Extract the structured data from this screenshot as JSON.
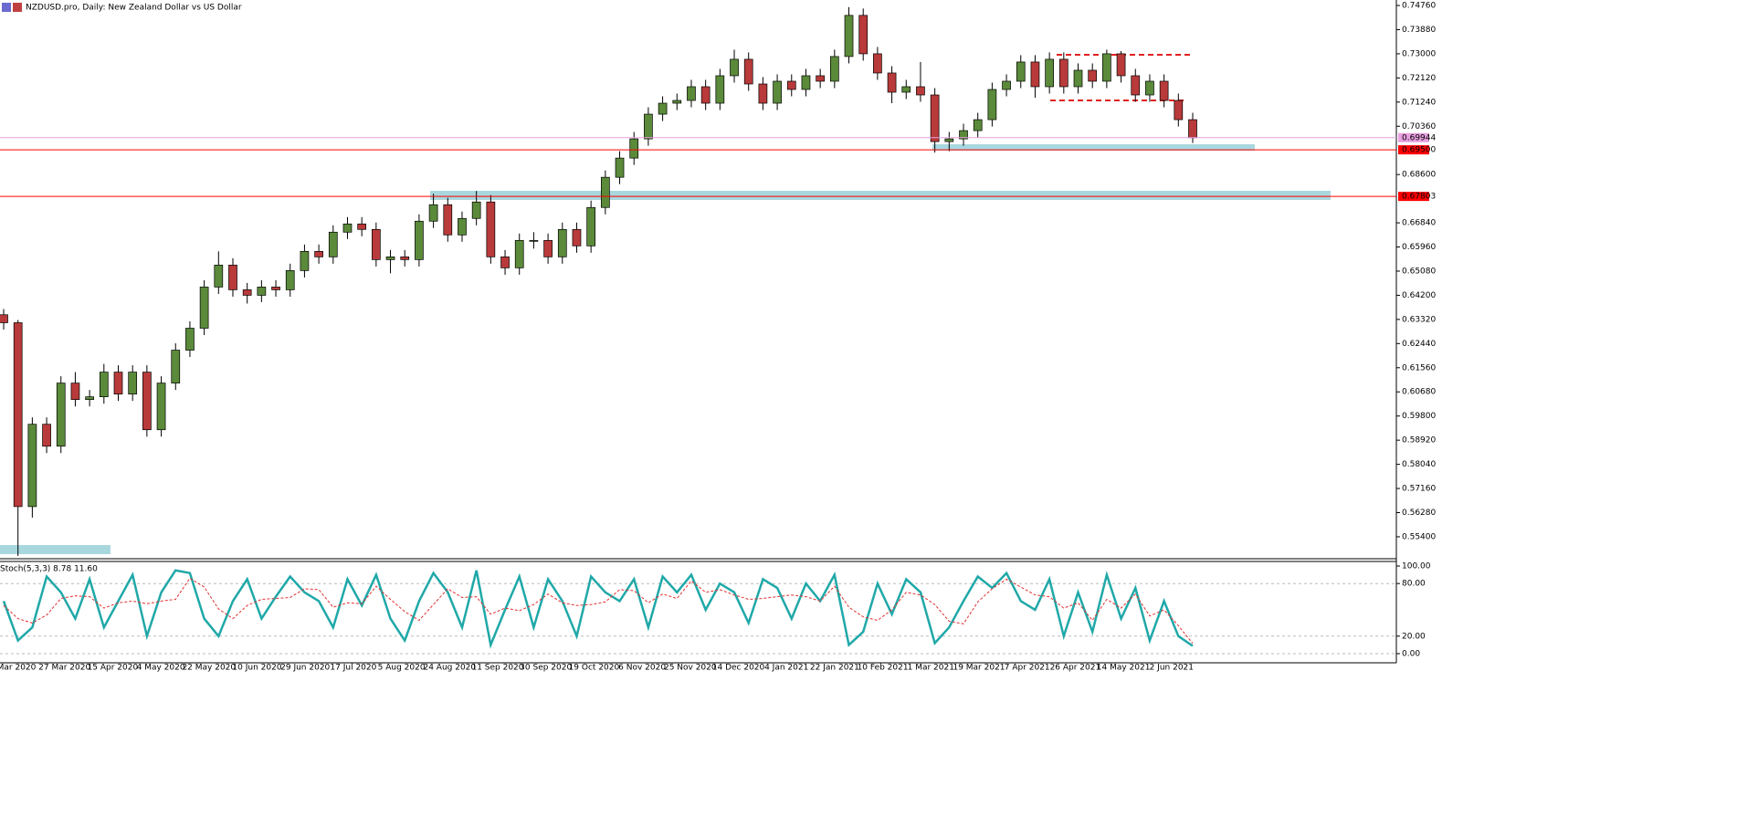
{
  "chart_data": [
    {
      "type": "candlestick",
      "title": "NZDUSD.pro, Daily:  New Zealand Dollar vs US Dollar",
      "bull_color": "#5a8a3a",
      "bear_color": "#b83a3a",
      "candles": [
        [
          0.6349,
          0.637,
          0.6295,
          0.632
        ],
        [
          0.632,
          0.633,
          0.547,
          0.565
        ],
        [
          0.565,
          0.5975,
          0.561,
          0.595
        ],
        [
          0.595,
          0.5975,
          0.5845,
          0.587
        ],
        [
          0.587,
          0.6125,
          0.5845,
          0.61
        ],
        [
          0.61,
          0.614,
          0.6015,
          0.604
        ],
        [
          0.604,
          0.6075,
          0.6015,
          0.605
        ],
        [
          0.605,
          0.617,
          0.6025,
          0.614
        ],
        [
          0.614,
          0.6165,
          0.6035,
          0.606
        ],
        [
          0.606,
          0.6165,
          0.6035,
          0.614
        ],
        [
          0.614,
          0.6165,
          0.5905,
          0.593
        ],
        [
          0.593,
          0.6125,
          0.5905,
          0.61
        ],
        [
          0.61,
          0.6245,
          0.6075,
          0.622
        ],
        [
          0.622,
          0.6325,
          0.6195,
          0.63
        ],
        [
          0.63,
          0.6475,
          0.6275,
          0.645
        ],
        [
          0.645,
          0.658,
          0.6425,
          0.653
        ],
        [
          0.653,
          0.6555,
          0.6415,
          0.644
        ],
        [
          0.644,
          0.6465,
          0.639,
          0.642
        ],
        [
          0.642,
          0.6475,
          0.6395,
          0.645
        ],
        [
          0.645,
          0.6475,
          0.6415,
          0.644
        ],
        [
          0.644,
          0.6535,
          0.6415,
          0.651
        ],
        [
          0.651,
          0.6605,
          0.6485,
          0.658
        ],
        [
          0.658,
          0.6605,
          0.6535,
          0.656
        ],
        [
          0.656,
          0.6675,
          0.6535,
          0.665
        ],
        [
          0.665,
          0.6705,
          0.6625,
          0.668
        ],
        [
          0.668,
          0.6705,
          0.6635,
          0.666
        ],
        [
          0.666,
          0.6685,
          0.6525,
          0.655
        ],
        [
          0.655,
          0.6585,
          0.65,
          0.656
        ],
        [
          0.656,
          0.6585,
          0.6525,
          0.655
        ],
        [
          0.655,
          0.6715,
          0.6525,
          0.669
        ],
        [
          0.669,
          0.679,
          0.6665,
          0.675
        ],
        [
          0.675,
          0.6775,
          0.6615,
          0.664
        ],
        [
          0.664,
          0.6725,
          0.6615,
          0.67
        ],
        [
          0.67,
          0.68,
          0.6675,
          0.676
        ],
        [
          0.676,
          0.6785,
          0.6535,
          0.656
        ],
        [
          0.656,
          0.6585,
          0.6495,
          0.652
        ],
        [
          0.652,
          0.6645,
          0.6495,
          0.662
        ],
        [
          0.662,
          0.665,
          0.659,
          0.662
        ],
        [
          0.662,
          0.6645,
          0.6535,
          0.656
        ],
        [
          0.656,
          0.6685,
          0.6535,
          0.666
        ],
        [
          0.666,
          0.6685,
          0.6575,
          0.66
        ],
        [
          0.66,
          0.6765,
          0.6575,
          0.674
        ],
        [
          0.674,
          0.6875,
          0.6715,
          0.685
        ],
        [
          0.685,
          0.6945,
          0.6825,
          0.692
        ],
        [
          0.692,
          0.7015,
          0.6895,
          0.699
        ],
        [
          0.699,
          0.7105,
          0.6965,
          0.708
        ],
        [
          0.708,
          0.7145,
          0.7055,
          0.712
        ],
        [
          0.712,
          0.7155,
          0.7095,
          0.713
        ],
        [
          0.713,
          0.7205,
          0.7105,
          0.718
        ],
        [
          0.718,
          0.7205,
          0.7095,
          0.712
        ],
        [
          0.712,
          0.7245,
          0.7095,
          0.722
        ],
        [
          0.722,
          0.7315,
          0.7195,
          0.728
        ],
        [
          0.728,
          0.7305,
          0.7165,
          0.719
        ],
        [
          0.719,
          0.7215,
          0.7095,
          0.712
        ],
        [
          0.712,
          0.7225,
          0.7095,
          0.72
        ],
        [
          0.72,
          0.7225,
          0.7145,
          0.717
        ],
        [
          0.717,
          0.7245,
          0.7145,
          0.722
        ],
        [
          0.722,
          0.7245,
          0.7175,
          0.72
        ],
        [
          0.72,
          0.7315,
          0.7175,
          0.729
        ],
        [
          0.729,
          0.747,
          0.7265,
          0.744
        ],
        [
          0.744,
          0.7465,
          0.7275,
          0.73
        ],
        [
          0.73,
          0.7325,
          0.7205,
          0.723
        ],
        [
          0.723,
          0.7255,
          0.712,
          0.716
        ],
        [
          0.716,
          0.7205,
          0.7135,
          0.718
        ],
        [
          0.718,
          0.727,
          0.7125,
          0.715
        ],
        [
          0.715,
          0.7175,
          0.694,
          0.698
        ],
        [
          0.698,
          0.7015,
          0.6945,
          0.699
        ],
        [
          0.699,
          0.7045,
          0.6965,
          0.702
        ],
        [
          0.702,
          0.7085,
          0.6995,
          0.706
        ],
        [
          0.706,
          0.7195,
          0.7035,
          0.717
        ],
        [
          0.717,
          0.7225,
          0.7145,
          0.72
        ],
        [
          0.72,
          0.7295,
          0.7175,
          0.727
        ],
        [
          0.727,
          0.7295,
          0.714,
          0.718
        ],
        [
          0.718,
          0.7305,
          0.7155,
          0.728
        ],
        [
          0.728,
          0.7305,
          0.7155,
          0.718
        ],
        [
          0.718,
          0.7265,
          0.7155,
          0.724
        ],
        [
          0.724,
          0.7265,
          0.7175,
          0.72
        ],
        [
          0.72,
          0.7315,
          0.7175,
          0.73
        ],
        [
          0.73,
          0.731,
          0.7195,
          0.722
        ],
        [
          0.722,
          0.7245,
          0.7125,
          0.715
        ],
        [
          0.715,
          0.7225,
          0.7125,
          0.72
        ],
        [
          0.72,
          0.7225,
          0.7105,
          0.713
        ],
        [
          0.713,
          0.7155,
          0.7035,
          0.706
        ],
        [
          0.706,
          0.7085,
          0.6975,
          0.6994
        ]
      ],
      "ylim": [
        0.546,
        0.7496
      ],
      "yticks": [
        {
          "value": 0.7476,
          "label": "0.74760"
        },
        {
          "value": 0.7388,
          "label": "0.73880"
        },
        {
          "value": 0.73,
          "label": "0.73000"
        },
        {
          "value": 0.7212,
          "label": "0.72120"
        },
        {
          "value": 0.7124,
          "label": "0.71240"
        },
        {
          "value": 0.7036,
          "label": "0.70360"
        },
        {
          "value": 0.686,
          "label": "0.68600"
        },
        {
          "value": 0.6684,
          "label": "0.66840"
        },
        {
          "value": 0.6596,
          "label": "0.65960"
        },
        {
          "value": 0.6508,
          "label": "0.65080"
        },
        {
          "value": 0.642,
          "label": "0.64200"
        },
        {
          "value": 0.6332,
          "label": "0.63320"
        },
        {
          "value": 0.6244,
          "label": "0.62440"
        },
        {
          "value": 0.6156,
          "label": "0.61560"
        },
        {
          "value": 0.6068,
          "label": "0.60680"
        },
        {
          "value": 0.598,
          "label": "0.59800"
        },
        {
          "value": 0.5892,
          "label": "0.58920"
        },
        {
          "value": 0.5804,
          "label": "0.58040"
        },
        {
          "value": 0.5716,
          "label": "0.57160"
        },
        {
          "value": 0.5628,
          "label": "0.56280"
        },
        {
          "value": 0.554,
          "label": "0.55400"
        }
      ],
      "price_line": {
        "value": 0.69944,
        "label": "0.69944",
        "color": "#e8a0e0"
      },
      "levels": [
        {
          "value": 0.695,
          "label": "0.69500",
          "color": "#ff0000"
        },
        {
          "value": 0.67803,
          "label": "0.67803",
          "color": "#ff0000"
        }
      ],
      "x_labels": [
        "Mar 2020",
        "27 Mar 2020",
        "15 Apr 2020",
        "4 May 2020",
        "22 May 2020",
        "10 Jun 2020",
        "29 Jun 2020",
        "17 Jul 2020",
        "5 Aug 2020",
        "24 Aug 2020",
        "11 Sep 2020",
        "30 Sep 2020",
        "19 Oct 2020",
        "6 Nov 2020",
        "25 Nov 2020",
        "14 Dec 2020",
        "4 Jan 2021",
        "22 Jan 2021",
        "10 Feb 2021",
        "1 Mar 2021",
        "19 Mar 2021",
        "7 Apr 2021",
        "26 Apr 2021",
        "14 May 2021",
        "2 Jun 2021"
      ]
    },
    {
      "type": "line",
      "title": "Stoch(5,3,3) 8.78 11.60",
      "series": [
        {
          "name": "Main",
          "color": "#20a8a8",
          "values": [
            60,
            15,
            30,
            88,
            70,
            40,
            85,
            30,
            60,
            90,
            20,
            70,
            95,
            92,
            40,
            20,
            60,
            85,
            40,
            65,
            88,
            70,
            60,
            30,
            85,
            55,
            90,
            40,
            15,
            60,
            92,
            70,
            30,
            95,
            10,
            50,
            88,
            30,
            85,
            60,
            20,
            88,
            70,
            60,
            85,
            30,
            88,
            70,
            90,
            50,
            80,
            70,
            35,
            85,
            75,
            40,
            80,
            60,
            90,
            10,
            25,
            80,
            45,
            85,
            70,
            12,
            30,
            60,
            88,
            75,
            92,
            60,
            50,
            85,
            20,
            70,
            25,
            90,
            40,
            75,
            15,
            60,
            20,
            8.78
          ]
        },
        {
          "name": "Signal",
          "color": "#e03030",
          "values": [
            55,
            40,
            35,
            44,
            63,
            66,
            65,
            52,
            58,
            60,
            57,
            60,
            62,
            86,
            76,
            51,
            40,
            55,
            62,
            63,
            64,
            74,
            73,
            53,
            58,
            57,
            77,
            62,
            48,
            38,
            56,
            74,
            64,
            65,
            45,
            52,
            49,
            56,
            68,
            58,
            55,
            56,
            59,
            73,
            72,
            58,
            68,
            63,
            83,
            70,
            73,
            67,
            62,
            63,
            65,
            67,
            65,
            60,
            77,
            53,
            42,
            38,
            50,
            70,
            67,
            56,
            37,
            34,
            59,
            74,
            85,
            76,
            67,
            65,
            52,
            58,
            38,
            62,
            52,
            68,
            43,
            50,
            32,
            11.6
          ]
        }
      ],
      "ylim": [
        -9.4,
        105.2
      ],
      "yticks": [
        {
          "value": 100,
          "label": "100.00"
        },
        {
          "value": 80,
          "label": "80.00"
        },
        {
          "value": 20,
          "label": "20.00"
        },
        {
          "value": 0,
          "label": "0.00"
        }
      ]
    }
  ]
}
